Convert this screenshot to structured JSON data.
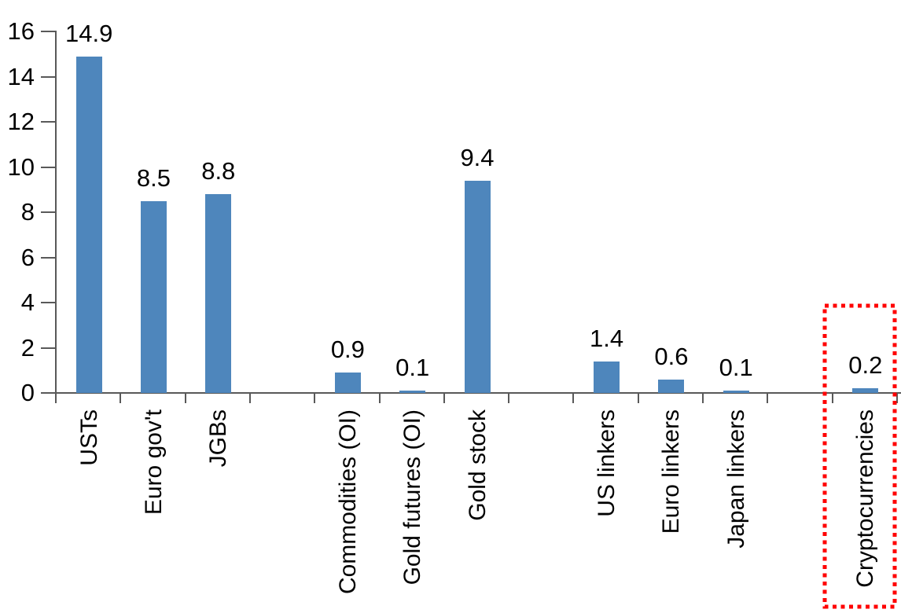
{
  "chart_data": {
    "type": "bar",
    "title": "",
    "xlabel": "",
    "ylabel": "",
    "categories": [
      "USTs",
      "Euro gov't",
      "JGBs",
      "Commodities (OI)",
      "Gold futures (OI)",
      "Gold stock",
      "US linkers",
      "Euro linkers",
      "Japan linkers",
      "Cryptocurrencies"
    ],
    "values": [
      14.9,
      8.5,
      8.8,
      0.9,
      0.1,
      9.4,
      1.4,
      0.6,
      0.1,
      0.2
    ],
    "value_labels": [
      "14.9",
      "8.5",
      "8.8",
      "0.9",
      "0.1",
      "9.4",
      "1.4",
      "0.6",
      "0.1",
      "0.2"
    ],
    "slot_index": [
      0,
      1,
      2,
      4,
      5,
      6,
      8,
      9,
      10,
      12
    ],
    "n_slots": 13,
    "ylim": [
      0,
      16
    ],
    "yticks": [
      0,
      2,
      4,
      6,
      8,
      10,
      12,
      14,
      16
    ],
    "grid": false,
    "legend": false,
    "bar_color": "#4E86BC",
    "axis_color": "#595959",
    "text_color": "#000000",
    "highlight": {
      "category": "Cryptocurrencies",
      "shape": "red-dotted-rectangle",
      "color": "#FF0000"
    }
  }
}
